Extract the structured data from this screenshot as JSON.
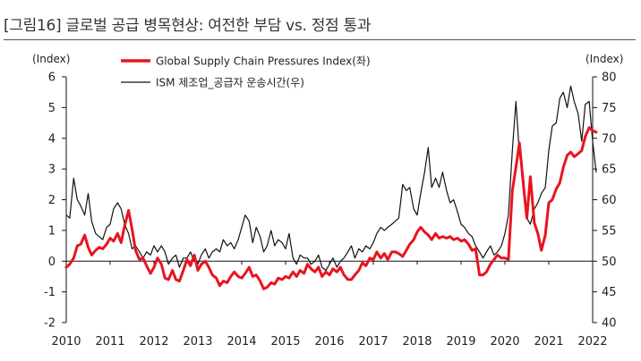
{
  "title": "[그림16] 글로벌 공급 병목현상: 여전한 부담 vs. 정점 통과",
  "chart_data": {
    "type": "line",
    "left_axis_label": "(Index)",
    "right_axis_label": "(Index)",
    "left_ylim": [
      -2,
      6
    ],
    "right_ylim": [
      40,
      80
    ],
    "left_ticks": [
      "-2",
      "-1",
      "0",
      "1",
      "2",
      "3",
      "4",
      "5",
      "6"
    ],
    "right_ticks": [
      "40",
      "45",
      "50",
      "55",
      "60",
      "65",
      "70",
      "75",
      "80"
    ],
    "x_ticks": [
      "2010",
      "2011",
      "2012",
      "2013",
      "2014",
      "2015",
      "2016",
      "2017",
      "2018",
      "2019",
      "2020",
      "2021",
      "2022"
    ],
    "xlim": [
      2010,
      2022
    ],
    "legend_position": "top-center",
    "series": [
      {
        "name": "Global Supply Chain Pressures Index(좌)",
        "axis": "left",
        "color": "#e8141e",
        "points": [
          [
            2010.0,
            -0.2
          ],
          [
            2010.08,
            -0.1
          ],
          [
            2010.17,
            0.1
          ],
          [
            2010.25,
            0.5
          ],
          [
            2010.33,
            0.55
          ],
          [
            2010.42,
            0.85
          ],
          [
            2010.5,
            0.45
          ],
          [
            2010.58,
            0.2
          ],
          [
            2010.67,
            0.35
          ],
          [
            2010.75,
            0.45
          ],
          [
            2010.83,
            0.4
          ],
          [
            2010.92,
            0.55
          ],
          [
            2011.0,
            0.75
          ],
          [
            2011.08,
            0.65
          ],
          [
            2011.17,
            0.9
          ],
          [
            2011.25,
            0.6
          ],
          [
            2011.33,
            1.15
          ],
          [
            2011.42,
            1.65
          ],
          [
            2011.5,
            1.05
          ],
          [
            2011.58,
            0.35
          ],
          [
            2011.67,
            0.05
          ],
          [
            2011.75,
            0.1
          ],
          [
            2011.83,
            -0.15
          ],
          [
            2011.92,
            -0.4
          ],
          [
            2012.0,
            -0.2
          ],
          [
            2012.08,
            0.1
          ],
          [
            2012.17,
            -0.1
          ],
          [
            2012.25,
            -0.55
          ],
          [
            2012.33,
            -0.6
          ],
          [
            2012.42,
            -0.3
          ],
          [
            2012.5,
            -0.6
          ],
          [
            2012.58,
            -0.65
          ],
          [
            2012.67,
            -0.3
          ],
          [
            2012.75,
            0.05
          ],
          [
            2012.83,
            -0.15
          ],
          [
            2012.92,
            0.2
          ],
          [
            2013.0,
            -0.3
          ],
          [
            2013.08,
            -0.1
          ],
          [
            2013.17,
            0.0
          ],
          [
            2013.25,
            -0.2
          ],
          [
            2013.33,
            -0.45
          ],
          [
            2013.42,
            -0.55
          ],
          [
            2013.5,
            -0.8
          ],
          [
            2013.58,
            -0.65
          ],
          [
            2013.67,
            -0.7
          ],
          [
            2013.75,
            -0.5
          ],
          [
            2013.83,
            -0.35
          ],
          [
            2013.92,
            -0.5
          ],
          [
            2014.0,
            -0.55
          ],
          [
            2014.08,
            -0.4
          ],
          [
            2014.17,
            -0.2
          ],
          [
            2014.25,
            -0.5
          ],
          [
            2014.33,
            -0.45
          ],
          [
            2014.42,
            -0.65
          ],
          [
            2014.5,
            -0.9
          ],
          [
            2014.58,
            -0.85
          ],
          [
            2014.67,
            -0.7
          ],
          [
            2014.75,
            -0.75
          ],
          [
            2014.83,
            -0.55
          ],
          [
            2014.92,
            -0.6
          ],
          [
            2015.0,
            -0.5
          ],
          [
            2015.08,
            -0.55
          ],
          [
            2015.17,
            -0.35
          ],
          [
            2015.25,
            -0.5
          ],
          [
            2015.33,
            -0.3
          ],
          [
            2015.42,
            -0.4
          ],
          [
            2015.5,
            -0.1
          ],
          [
            2015.58,
            -0.25
          ],
          [
            2015.67,
            -0.35
          ],
          [
            2015.75,
            -0.2
          ],
          [
            2015.83,
            -0.5
          ],
          [
            2015.92,
            -0.35
          ],
          [
            2016.0,
            -0.45
          ],
          [
            2016.08,
            -0.25
          ],
          [
            2016.17,
            -0.35
          ],
          [
            2016.25,
            -0.2
          ],
          [
            2016.33,
            -0.45
          ],
          [
            2016.42,
            -0.6
          ],
          [
            2016.5,
            -0.6
          ],
          [
            2016.58,
            -0.45
          ],
          [
            2016.67,
            -0.3
          ],
          [
            2016.75,
            -0.05
          ],
          [
            2016.83,
            -0.15
          ],
          [
            2016.92,
            0.1
          ],
          [
            2017.0,
            0.05
          ],
          [
            2017.08,
            0.3
          ],
          [
            2017.17,
            0.1
          ],
          [
            2017.25,
            0.25
          ],
          [
            2017.33,
            0.05
          ],
          [
            2017.42,
            0.3
          ],
          [
            2017.5,
            0.3
          ],
          [
            2017.58,
            0.25
          ],
          [
            2017.67,
            0.15
          ],
          [
            2017.75,
            0.35
          ],
          [
            2017.83,
            0.55
          ],
          [
            2017.92,
            0.7
          ],
          [
            2018.0,
            0.95
          ],
          [
            2018.08,
            1.1
          ],
          [
            2018.17,
            0.95
          ],
          [
            2018.25,
            0.85
          ],
          [
            2018.33,
            0.7
          ],
          [
            2018.42,
            0.9
          ],
          [
            2018.5,
            0.75
          ],
          [
            2018.58,
            0.8
          ],
          [
            2018.67,
            0.75
          ],
          [
            2018.75,
            0.8
          ],
          [
            2018.83,
            0.7
          ],
          [
            2018.92,
            0.75
          ],
          [
            2019.0,
            0.65
          ],
          [
            2019.08,
            0.7
          ],
          [
            2019.17,
            0.55
          ],
          [
            2019.25,
            0.35
          ],
          [
            2019.33,
            0.4
          ],
          [
            2019.42,
            -0.45
          ],
          [
            2019.5,
            -0.45
          ],
          [
            2019.58,
            -0.35
          ],
          [
            2019.67,
            -0.1
          ],
          [
            2019.75,
            0.05
          ],
          [
            2019.83,
            0.2
          ],
          [
            2019.92,
            0.1
          ],
          [
            2020.0,
            0.1
          ],
          [
            2020.08,
            0.05
          ],
          [
            2020.17,
            2.3
          ],
          [
            2020.25,
            3.05
          ],
          [
            2020.33,
            3.85
          ],
          [
            2020.42,
            2.5
          ],
          [
            2020.5,
            1.4
          ],
          [
            2020.58,
            2.75
          ],
          [
            2020.67,
            1.25
          ],
          [
            2020.75,
            0.9
          ],
          [
            2020.83,
            0.35
          ],
          [
            2020.92,
            0.85
          ],
          [
            2021.0,
            1.9
          ],
          [
            2021.08,
            2.0
          ],
          [
            2021.17,
            2.35
          ],
          [
            2021.25,
            2.55
          ],
          [
            2021.33,
            3.05
          ],
          [
            2021.42,
            3.45
          ],
          [
            2021.5,
            3.55
          ],
          [
            2021.58,
            3.4
          ],
          [
            2021.67,
            3.5
          ],
          [
            2021.75,
            3.6
          ],
          [
            2021.83,
            4.05
          ],
          [
            2021.92,
            4.35
          ],
          [
            2022.0,
            4.25
          ],
          [
            2022.08,
            4.2
          ]
        ]
      },
      {
        "name": "ISM 제조업_공급자  운송시간(우)",
        "axis": "right",
        "color": "#111111",
        "points": [
          [
            2010.0,
            57.5
          ],
          [
            2010.08,
            57.0
          ],
          [
            2010.17,
            63.5
          ],
          [
            2010.25,
            60.0
          ],
          [
            2010.33,
            59.0
          ],
          [
            2010.42,
            57.5
          ],
          [
            2010.5,
            61.0
          ],
          [
            2010.58,
            56.5
          ],
          [
            2010.67,
            54.5
          ],
          [
            2010.75,
            54.0
          ],
          [
            2010.83,
            53.5
          ],
          [
            2010.92,
            55.5
          ],
          [
            2011.0,
            56.0
          ],
          [
            2011.08,
            58.5
          ],
          [
            2011.17,
            59.5
          ],
          [
            2011.25,
            58.5
          ],
          [
            2011.33,
            56.0
          ],
          [
            2011.42,
            54.5
          ],
          [
            2011.5,
            52.0
          ],
          [
            2011.58,
            52.5
          ],
          [
            2011.67,
            51.5
          ],
          [
            2011.75,
            50.5
          ],
          [
            2011.83,
            51.5
          ],
          [
            2011.92,
            51.0
          ],
          [
            2012.0,
            52.5
          ],
          [
            2012.08,
            51.5
          ],
          [
            2012.17,
            52.5
          ],
          [
            2012.25,
            51.5
          ],
          [
            2012.33,
            49.5
          ],
          [
            2012.42,
            50.5
          ],
          [
            2012.5,
            51.0
          ],
          [
            2012.58,
            49.0
          ],
          [
            2012.67,
            50.5
          ],
          [
            2012.75,
            50.5
          ],
          [
            2012.83,
            51.5
          ],
          [
            2012.92,
            50.0
          ],
          [
            2013.0,
            49.5
          ],
          [
            2013.08,
            51.0
          ],
          [
            2013.17,
            52.0
          ],
          [
            2013.25,
            50.5
          ],
          [
            2013.33,
            51.5
          ],
          [
            2013.42,
            52.0
          ],
          [
            2013.5,
            51.5
          ],
          [
            2013.58,
            53.5
          ],
          [
            2013.67,
            52.5
          ],
          [
            2013.75,
            53.0
          ],
          [
            2013.83,
            52.0
          ],
          [
            2013.92,
            53.5
          ],
          [
            2014.0,
            55.5
          ],
          [
            2014.08,
            57.5
          ],
          [
            2014.17,
            56.5
          ],
          [
            2014.25,
            53.0
          ],
          [
            2014.33,
            55.5
          ],
          [
            2014.42,
            54.0
          ],
          [
            2014.5,
            51.5
          ],
          [
            2014.58,
            52.5
          ],
          [
            2014.67,
            55.0
          ],
          [
            2014.75,
            52.5
          ],
          [
            2014.83,
            53.5
          ],
          [
            2014.92,
            53.0
          ],
          [
            2015.0,
            52.0
          ],
          [
            2015.08,
            54.5
          ],
          [
            2015.17,
            50.5
          ],
          [
            2015.25,
            49.5
          ],
          [
            2015.33,
            51.0
          ],
          [
            2015.42,
            50.5
          ],
          [
            2015.5,
            50.5
          ],
          [
            2015.58,
            49.5
          ],
          [
            2015.67,
            50.0
          ],
          [
            2015.75,
            51.0
          ],
          [
            2015.83,
            49.0
          ],
          [
            2015.92,
            48.5
          ],
          [
            2016.0,
            49.5
          ],
          [
            2016.08,
            50.5
          ],
          [
            2016.17,
            49.0
          ],
          [
            2016.25,
            50.0
          ],
          [
            2016.33,
            50.5
          ],
          [
            2016.42,
            51.5
          ],
          [
            2016.5,
            52.5
          ],
          [
            2016.58,
            50.5
          ],
          [
            2016.67,
            52.0
          ],
          [
            2016.75,
            51.5
          ],
          [
            2016.83,
            52.5
          ],
          [
            2016.92,
            52.0
          ],
          [
            2017.0,
            53.0
          ],
          [
            2017.08,
            54.5
          ],
          [
            2017.17,
            55.5
          ],
          [
            2017.25,
            55.0
          ],
          [
            2017.33,
            55.5
          ],
          [
            2017.42,
            56.0
          ],
          [
            2017.5,
            56.5
          ],
          [
            2017.58,
            57.0
          ],
          [
            2017.67,
            62.5
          ],
          [
            2017.75,
            61.5
          ],
          [
            2017.83,
            62.0
          ],
          [
            2017.92,
            58.5
          ],
          [
            2018.0,
            57.5
          ],
          [
            2018.08,
            61.0
          ],
          [
            2018.17,
            64.5
          ],
          [
            2018.25,
            68.5
          ],
          [
            2018.33,
            62.0
          ],
          [
            2018.42,
            63.5
          ],
          [
            2018.5,
            62.0
          ],
          [
            2018.58,
            64.5
          ],
          [
            2018.67,
            61.5
          ],
          [
            2018.75,
            59.5
          ],
          [
            2018.83,
            60.0
          ],
          [
            2018.92,
            58.0
          ],
          [
            2019.0,
            56.0
          ],
          [
            2019.08,
            55.5
          ],
          [
            2019.17,
            54.5
          ],
          [
            2019.25,
            54.0
          ],
          [
            2019.33,
            52.5
          ],
          [
            2019.42,
            51.5
          ],
          [
            2019.5,
            50.5
          ],
          [
            2019.58,
            51.5
          ],
          [
            2019.67,
            52.5
          ],
          [
            2019.75,
            51.0
          ],
          [
            2019.83,
            51.5
          ],
          [
            2019.92,
            52.5
          ],
          [
            2020.0,
            54.5
          ],
          [
            2020.08,
            57.5
          ],
          [
            2020.17,
            68.0
          ],
          [
            2020.25,
            76.0
          ],
          [
            2020.33,
            67.5
          ],
          [
            2020.42,
            64.0
          ],
          [
            2020.5,
            57.0
          ],
          [
            2020.58,
            56.0
          ],
          [
            2020.67,
            58.5
          ],
          [
            2020.75,
            59.5
          ],
          [
            2020.83,
            61.0
          ],
          [
            2020.92,
            62.0
          ],
          [
            2021.0,
            68.0
          ],
          [
            2021.08,
            72.0
          ],
          [
            2021.17,
            72.5
          ],
          [
            2021.25,
            76.5
          ],
          [
            2021.33,
            77.5
          ],
          [
            2021.42,
            75.0
          ],
          [
            2021.5,
            78.5
          ],
          [
            2021.58,
            76.0
          ],
          [
            2021.67,
            74.0
          ],
          [
            2021.75,
            69.5
          ],
          [
            2021.83,
            75.5
          ],
          [
            2021.92,
            76.0
          ],
          [
            2022.0,
            69.5
          ],
          [
            2022.08,
            64.5
          ]
        ]
      }
    ]
  }
}
